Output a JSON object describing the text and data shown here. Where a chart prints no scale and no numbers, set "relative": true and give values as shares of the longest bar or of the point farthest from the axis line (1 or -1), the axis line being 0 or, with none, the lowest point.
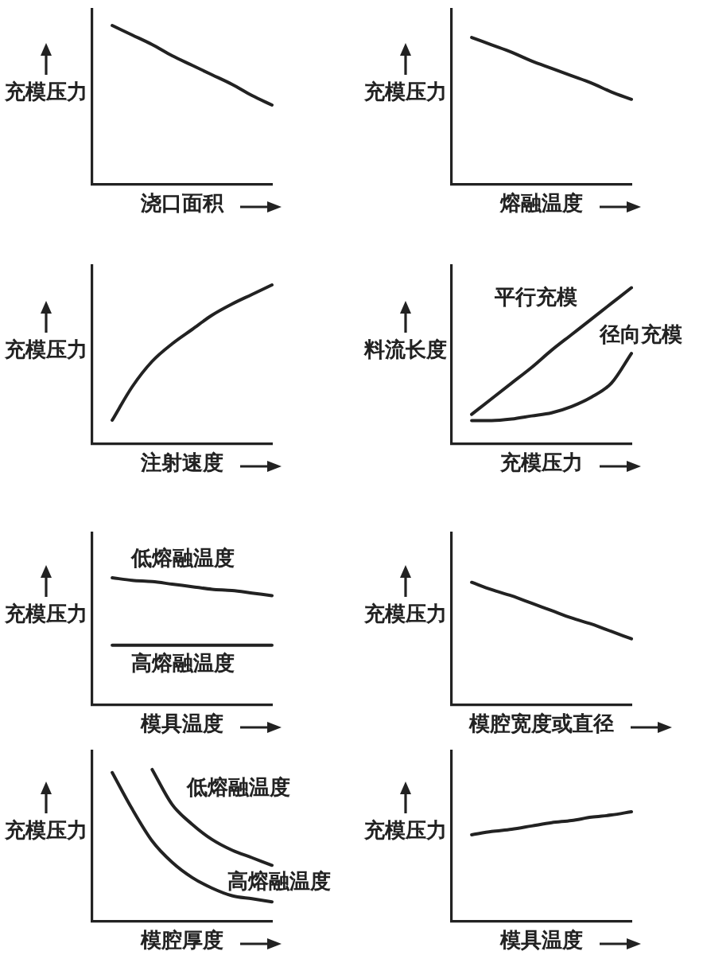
{
  "chart_data": [
    {
      "type": "line",
      "relative": true,
      "xlabel": "浇口面积",
      "ylabel": "充模压力",
      "categories": [
        null,
        null,
        null,
        null,
        null,
        null,
        null,
        null,
        null,
        null
      ],
      "color": "#222222",
      "values": [
        null,
        1,
        0.94,
        0.88,
        0.81,
        0.75,
        0.69,
        0.63,
        0.56,
        0.5
      ]
    },
    {
      "type": "line",
      "relative": true,
      "xlabel": "熔融温度",
      "ylabel": "充模压力",
      "categories": [
        null,
        null,
        null,
        null,
        null,
        null,
        null,
        null,
        null,
        null
      ],
      "color": "#222222",
      "values": [
        null,
        1,
        0.95,
        0.9,
        0.84,
        0.79,
        0.74,
        0.69,
        0.63,
        0.58
      ]
    },
    {
      "type": "line",
      "relative": true,
      "xlabel": "注射速度",
      "ylabel": "充模压力",
      "categories": [
        null,
        null,
        null,
        null,
        null,
        null,
        null,
        null,
        null,
        null
      ],
      "color": "#222222",
      "values": [
        null,
        0.15,
        0.36,
        0.52,
        0.63,
        0.72,
        0.81,
        0.88,
        0.94,
        1
      ]
    },
    {
      "type": "line",
      "relative": true,
      "xlabel": "充模压力",
      "ylabel": "料流长度",
      "categories": [
        null,
        null,
        null,
        null,
        null,
        null,
        null,
        null,
        null,
        null
      ],
      "series": [
        {
          "name": "平行充模",
          "color": "#222222",
          "values": [
            null,
            0.19,
            0.29,
            0.39,
            0.49,
            0.6,
            0.7,
            0.8,
            0.9,
            1
          ]
        },
        {
          "name": "径向充模",
          "color": "#222222",
          "values": [
            null,
            0.15,
            0.15,
            0.16,
            0.18,
            0.2,
            0.24,
            0.3,
            0.39,
            0.58
          ]
        }
      ]
    },
    {
      "type": "line",
      "relative": true,
      "xlabel": "模具温度",
      "ylabel": "充模压力",
      "categories": [
        null,
        null,
        null,
        null,
        null,
        null,
        null,
        null,
        null,
        null
      ],
      "series": [
        {
          "name": "低熔融温度",
          "color": "#222222",
          "values": [
            null,
            1,
            0.98,
            0.97,
            0.95,
            0.93,
            0.91,
            0.9,
            0.88,
            0.86
          ]
        },
        {
          "name": "高熔融温度",
          "color": "#222222",
          "values": [
            null,
            0.47,
            0.47,
            0.47,
            0.47,
            0.47,
            0.47,
            0.47,
            0.47,
            0.47
          ]
        }
      ]
    },
    {
      "type": "line",
      "relative": true,
      "xlabel": "模腔宽度或直径",
      "ylabel": "充模压力",
      "categories": [
        null,
        null,
        null,
        null,
        null,
        null,
        null,
        null,
        null,
        null
      ],
      "color": "#222222",
      "values": [
        null,
        1,
        0.94,
        0.89,
        0.83,
        0.77,
        0.71,
        0.66,
        0.6,
        0.54
      ]
    },
    {
      "type": "line",
      "relative": true,
      "xlabel": "模腔厚度",
      "ylabel": "充模压力",
      "categories": [
        null,
        null,
        null,
        null,
        null,
        null,
        null,
        null,
        null,
        null
      ],
      "series": [
        {
          "name": "低熔融温度",
          "color": "#222222",
          "values": [
            null,
            null,
            null,
            1,
            0.77,
            0.64,
            0.54,
            0.47,
            0.42,
            0.37
          ]
        },
        {
          "name": "高熔融温度",
          "color": "#222222",
          "values": [
            null,
            0.98,
            0.74,
            0.53,
            0.39,
            0.29,
            0.22,
            0.17,
            0.15,
            0.13
          ]
        }
      ]
    },
    {
      "type": "line",
      "relative": true,
      "xlabel": "模具温度",
      "ylabel": "充模压力",
      "categories": [
        null,
        null,
        null,
        null,
        null,
        null,
        null,
        null,
        null,
        null
      ],
      "color": "#222222",
      "values": [
        null,
        0.79,
        0.82,
        0.84,
        0.87,
        0.9,
        0.92,
        0.95,
        0.97,
        1
      ]
    }
  ]
}
